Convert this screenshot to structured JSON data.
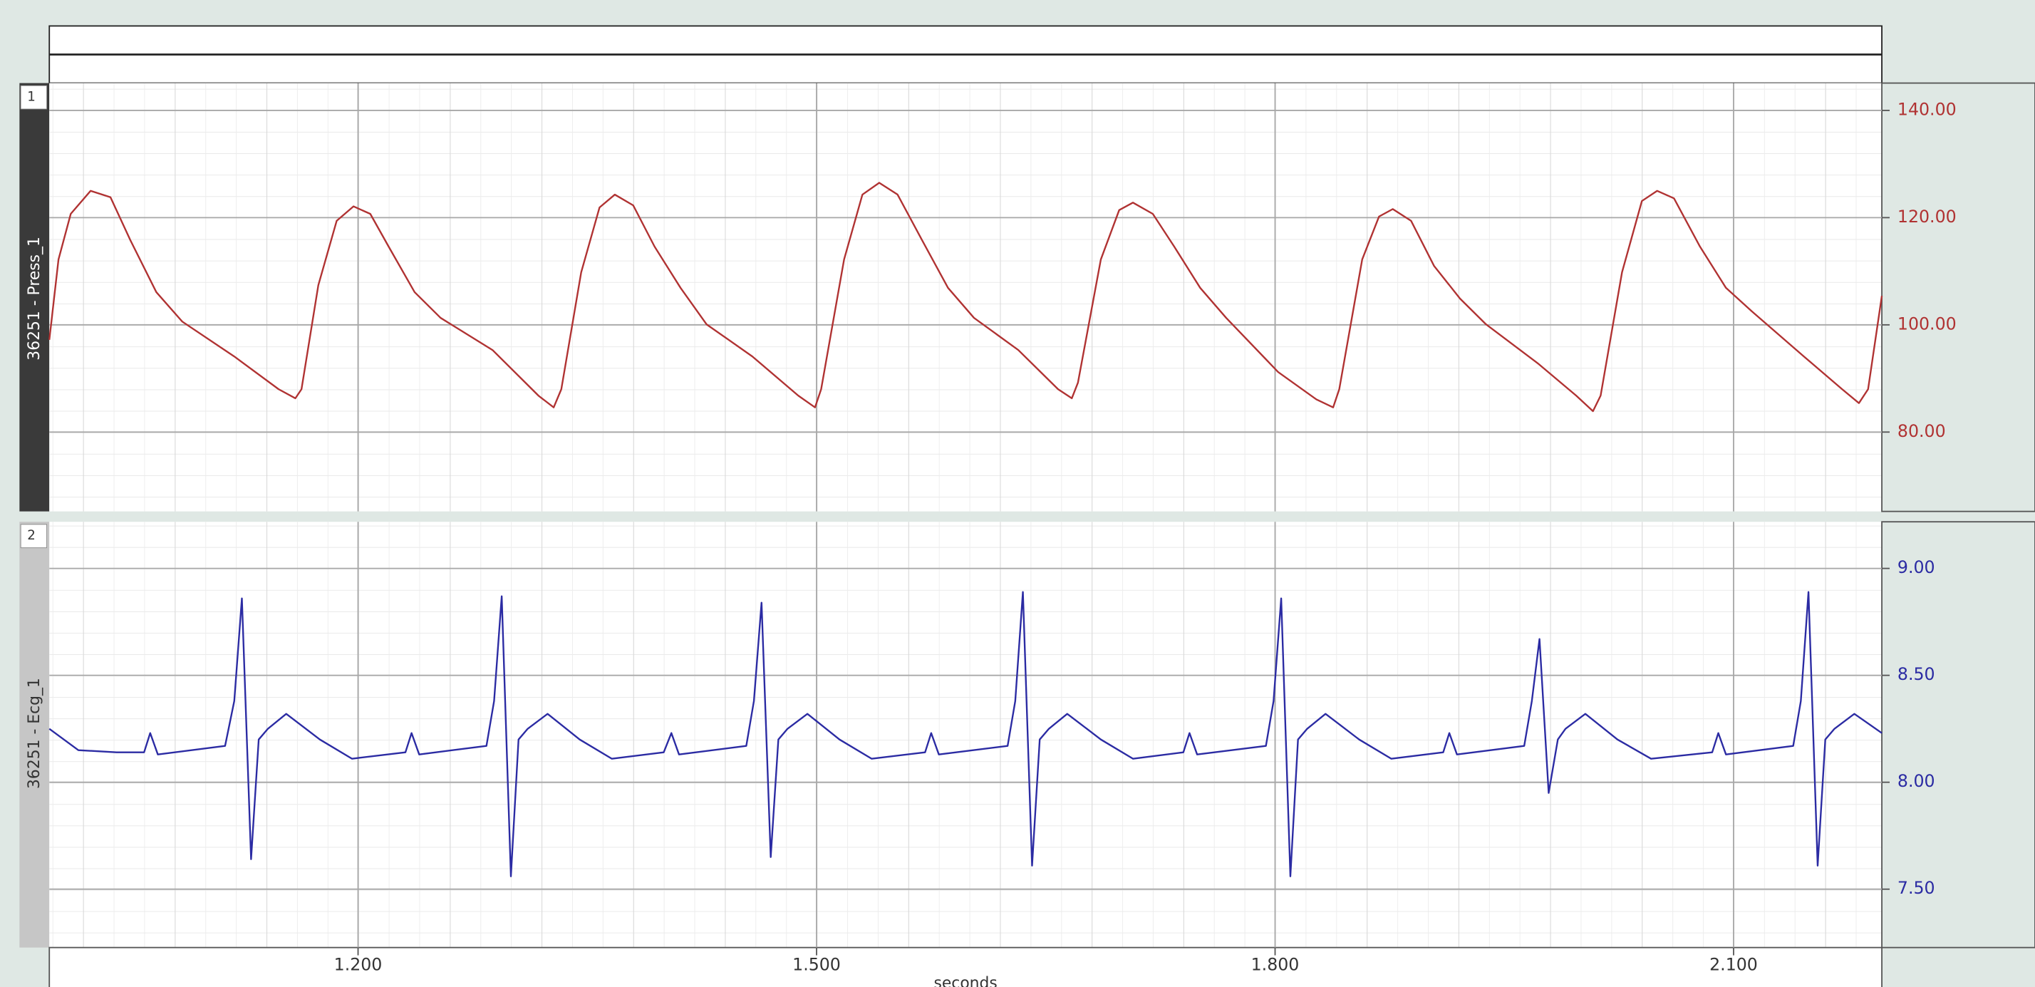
{
  "chart_data": [
    {
      "type": "line",
      "channel": "1",
      "title": "36251 - Press_1",
      "color": "#b03232",
      "xlim": [
        0.998,
        2.197
      ],
      "ylim": [
        65.2,
        145.1
      ],
      "grid": true,
      "yticks": [
        {
          "value": 140,
          "label": "140.00"
        },
        {
          "value": 120,
          "label": "120.00"
        },
        {
          "value": 100,
          "label": "100.00"
        },
        {
          "value": 80,
          "label": "80.00"
        }
      ],
      "x": [
        0.998,
        1.004,
        1.012,
        1.025,
        1.038,
        1.051,
        1.068,
        1.085,
        1.119,
        1.148,
        1.159,
        1.163,
        1.174,
        1.186,
        1.197,
        1.208,
        1.22,
        1.237,
        1.254,
        1.288,
        1.318,
        1.328,
        1.333,
        1.346,
        1.358,
        1.368,
        1.38,
        1.394,
        1.411,
        1.428,
        1.458,
        1.488,
        1.499,
        1.503,
        1.518,
        1.53,
        1.541,
        1.553,
        1.569,
        1.586,
        1.603,
        1.632,
        1.658,
        1.667,
        1.671,
        1.686,
        1.698,
        1.707,
        1.72,
        1.734,
        1.751,
        1.768,
        1.802,
        1.827,
        1.838,
        1.842,
        1.857,
        1.868,
        1.877,
        1.889,
        1.904,
        1.921,
        1.938,
        1.972,
        1.997,
        2.008,
        2.013,
        2.027,
        2.04,
        2.05,
        2.061,
        2.078,
        2.095,
        2.112,
        2.146,
        2.171,
        2.182,
        2.188,
        2.197
      ],
      "values": [
        97.2,
        112.2,
        120.7,
        125.0,
        123.8,
        115.8,
        106.1,
        100.6,
        94.1,
        88.0,
        86.3,
        88.0,
        107.4,
        119.4,
        122.1,
        120.7,
        114.6,
        106.1,
        101.3,
        95.3,
        86.8,
        84.6,
        88.0,
        109.8,
        121.9,
        124.3,
        122.3,
        114.6,
        106.9,
        100.1,
        94.1,
        86.8,
        84.6,
        88.0,
        112.2,
        124.3,
        126.5,
        124.3,
        115.8,
        106.9,
        101.3,
        95.3,
        88.0,
        86.3,
        89.2,
        112.2,
        121.4,
        122.8,
        120.7,
        114.6,
        106.9,
        101.3,
        91.2,
        86.1,
        84.6,
        88.0,
        112.2,
        120.2,
        121.6,
        119.4,
        111.0,
        104.9,
        100.1,
        92.8,
        86.8,
        83.9,
        86.8,
        109.8,
        123.1,
        125.0,
        123.6,
        114.6,
        106.9,
        102.5,
        94.1,
        88.0,
        85.4,
        88.0,
        105.4
      ]
    },
    {
      "type": "line",
      "channel": "2",
      "title": "36251 - Ecg_1",
      "color": "#2b2ba3",
      "xlim": [
        0.998,
        2.197
      ],
      "ylim": [
        7.227,
        9.218
      ],
      "grid": true,
      "xlabel": "seconds",
      "xticks": [
        {
          "value": 1.2,
          "label": "1.200"
        },
        {
          "value": 1.5,
          "label": "1.500"
        },
        {
          "value": 1.8,
          "label": "1.800"
        },
        {
          "value": 2.1,
          "label": "2.100"
        }
      ],
      "yticks": [
        {
          "value": 9,
          "label": "9.00"
        },
        {
          "value": 8.5,
          "label": "8.50"
        },
        {
          "value": 8,
          "label": "8.00"
        },
        {
          "value": 7.5,
          "label": "7.50"
        }
      ],
      "x": [
        0.998,
        1.017,
        1.042,
        1.06,
        1.064,
        1.069,
        1.113,
        1.119,
        1.124,
        1.13,
        1.135,
        1.141,
        1.153,
        1.175,
        1.196,
        1.231,
        1.235,
        1.24,
        1.284,
        1.289,
        1.294,
        1.3,
        1.305,
        1.311,
        1.324,
        1.345,
        1.366,
        1.4,
        1.405,
        1.41,
        1.454,
        1.459,
        1.464,
        1.47,
        1.475,
        1.481,
        1.494,
        1.515,
        1.536,
        1.571,
        1.575,
        1.58,
        1.625,
        1.63,
        1.635,
        1.641,
        1.646,
        1.652,
        1.664,
        1.686,
        1.707,
        1.74,
        1.744,
        1.749,
        1.794,
        1.799,
        1.804,
        1.81,
        1.815,
        1.821,
        1.833,
        1.855,
        1.876,
        1.91,
        1.914,
        1.919,
        1.963,
        1.968,
        1.973,
        1.979,
        1.985,
        1.99,
        2.003,
        2.024,
        2.046,
        2.086,
        2.09,
        2.095,
        2.139,
        2.144,
        2.149,
        2.155,
        2.16,
        2.166,
        2.179,
        2.197
      ],
      "values": [
        8.25,
        8.15,
        8.14,
        8.14,
        8.23,
        8.13,
        8.17,
        8.38,
        8.86,
        7.64,
        8.2,
        8.25,
        8.32,
        8.2,
        8.11,
        8.14,
        8.23,
        8.13,
        8.17,
        8.38,
        8.87,
        7.56,
        8.2,
        8.25,
        8.32,
        8.2,
        8.11,
        8.14,
        8.23,
        8.13,
        8.17,
        8.38,
        8.84,
        7.65,
        8.2,
        8.25,
        8.32,
        8.2,
        8.11,
        8.14,
        8.23,
        8.13,
        8.17,
        8.38,
        8.89,
        7.61,
        8.2,
        8.25,
        8.32,
        8.2,
        8.11,
        8.14,
        8.23,
        8.13,
        8.17,
        8.38,
        8.86,
        7.56,
        8.2,
        8.25,
        8.32,
        8.2,
        8.11,
        8.14,
        8.23,
        8.13,
        8.17,
        8.38,
        8.67,
        7.95,
        8.2,
        8.25,
        8.32,
        8.2,
        8.11,
        8.14,
        8.23,
        8.13,
        8.17,
        8.38,
        8.89,
        7.61,
        8.2,
        8.25,
        8.32,
        8.23
      ]
    }
  ]
}
